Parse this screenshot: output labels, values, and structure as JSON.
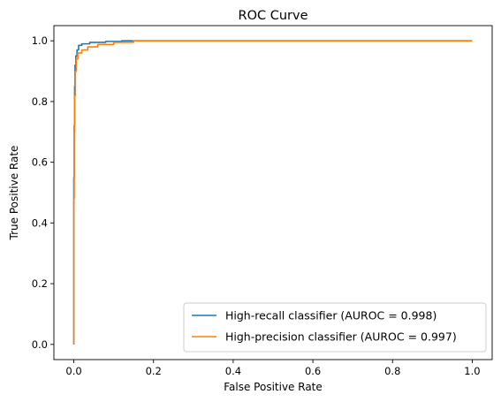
{
  "chart_data": {
    "type": "line",
    "title": "ROC Curve",
    "xlabel": "False Positive Rate",
    "ylabel": "True Positive Rate",
    "xlim": [
      -0.05,
      1.05
    ],
    "ylim": [
      -0.05,
      1.05
    ],
    "x_ticks": [
      "0.0",
      "0.2",
      "0.4",
      "0.6",
      "0.8",
      "1.0"
    ],
    "y_ticks": [
      "0.0",
      "0.2",
      "0.4",
      "0.6",
      "0.8",
      "1.0"
    ],
    "grid": false,
    "legend_position": "lower-right",
    "series": [
      {
        "name": "High-recall classifier (AUROC = 0.998)",
        "color": "#1f77b4",
        "points": [
          [
            0.0,
            0.0
          ],
          [
            0.0,
            0.3
          ],
          [
            0.0,
            0.55
          ],
          [
            0.001,
            0.55
          ],
          [
            0.001,
            0.72
          ],
          [
            0.002,
            0.72
          ],
          [
            0.002,
            0.85
          ],
          [
            0.003,
            0.85
          ],
          [
            0.003,
            0.92
          ],
          [
            0.005,
            0.92
          ],
          [
            0.005,
            0.95
          ],
          [
            0.008,
            0.95
          ],
          [
            0.008,
            0.97
          ],
          [
            0.012,
            0.97
          ],
          [
            0.012,
            0.985
          ],
          [
            0.02,
            0.985
          ],
          [
            0.02,
            0.99
          ],
          [
            0.04,
            0.99
          ],
          [
            0.04,
            0.995
          ],
          [
            0.08,
            0.995
          ],
          [
            0.08,
            0.998
          ],
          [
            0.12,
            0.998
          ],
          [
            0.12,
            1.0
          ],
          [
            1.0,
            1.0
          ]
        ]
      },
      {
        "name": "High-precision classifier (AUROC = 0.997)",
        "color": "#ff7f0e",
        "points": [
          [
            0.0,
            0.0
          ],
          [
            0.0,
            0.48
          ],
          [
            0.001,
            0.48
          ],
          [
            0.001,
            0.7
          ],
          [
            0.002,
            0.7
          ],
          [
            0.002,
            0.82
          ],
          [
            0.004,
            0.82
          ],
          [
            0.004,
            0.9
          ],
          [
            0.006,
            0.9
          ],
          [
            0.006,
            0.94
          ],
          [
            0.01,
            0.94
          ],
          [
            0.01,
            0.96
          ],
          [
            0.02,
            0.96
          ],
          [
            0.02,
            0.97
          ],
          [
            0.035,
            0.97
          ],
          [
            0.035,
            0.98
          ],
          [
            0.06,
            0.98
          ],
          [
            0.06,
            0.988
          ],
          [
            0.1,
            0.988
          ],
          [
            0.1,
            0.995
          ],
          [
            0.15,
            0.995
          ],
          [
            0.15,
            1.0
          ],
          [
            1.0,
            1.0
          ]
        ]
      }
    ]
  }
}
